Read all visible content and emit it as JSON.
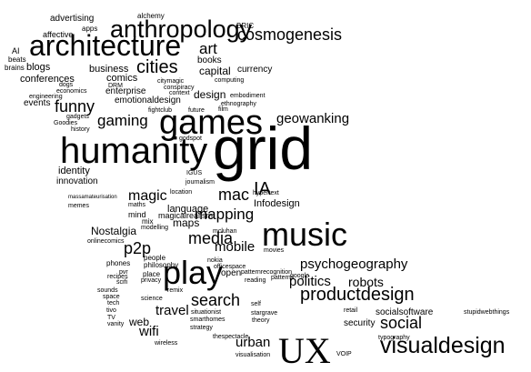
{
  "tags": [
    "advertising",
    "alchemy",
    "apps",
    "BRIC",
    "affective",
    "anthropology",
    "AI",
    "beats",
    "brains",
    "architecture",
    "cosmogenesis",
    "art",
    "blogs",
    "books",
    "business",
    "cities",
    "currency",
    "capital",
    "conferences",
    "comics",
    "citymagic",
    "computing",
    "DRM",
    "dogs",
    "economics",
    "engineering",
    "enterprise",
    "conspiracy",
    "context",
    "design",
    "embodiment",
    "emotionaldesign",
    "ethnography",
    "events",
    "funny",
    "future",
    "film",
    "gadgets",
    "fightclub",
    "Goodies",
    "games",
    "history",
    "gaming",
    "geowanking",
    "godspot",
    "humanity",
    "grid",
    "hypertext",
    "identity",
    "IGUS",
    "innovation",
    "journalism",
    "IA",
    "language",
    "location",
    "magic",
    "massamateurisation",
    "maths",
    "memes",
    "mac",
    "Infodesign",
    "magicalrealism",
    "mapping",
    "mind",
    "mix",
    "modelling",
    "maps",
    "Nostalgia",
    "mcluhan",
    "media",
    "mobile",
    "music",
    "onlinecomics",
    "p2p",
    "movies",
    "nokia",
    "people",
    "philosophy",
    "play",
    "officespace",
    "phones",
    "pvr",
    "open",
    "patternrecognition",
    "psychogeography",
    "google",
    "place",
    "patterns",
    "recipes",
    "privacy",
    "reading",
    "politics",
    "scifi",
    "remix",
    "sounds",
    "science",
    "self",
    "robots",
    "productdesign",
    "space",
    "tech",
    "search",
    "retail",
    "tivo",
    "situationist",
    "stargrave",
    "social",
    "socialsoftware",
    "stupidwebthings",
    "TV",
    "web",
    "travel",
    "smarthomes",
    "security",
    "vanity",
    "wifi",
    "strategy",
    "theory",
    "wireless",
    "typography",
    "urban",
    "thespectacle",
    "visualisation",
    "UX",
    "VOIP",
    "visualdesign"
  ]
}
